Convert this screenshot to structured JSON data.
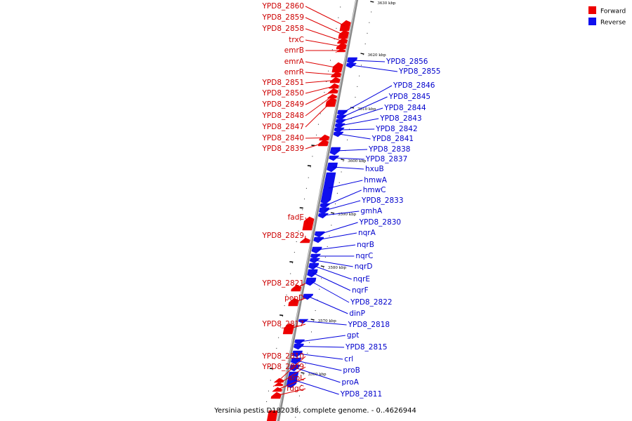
{
  "legend": {
    "forward_label": "Forward",
    "reverse_label": "Reverse",
    "forward_color": "#ee0000",
    "reverse_color": "#1010ee"
  },
  "caption": "Yersinia pestis D182038, complete genome. - 0..4626944",
  "axis": {
    "ticks": [
      "3630 kbp",
      "3620 kbp",
      "3610 kbp",
      "3600 kbp",
      "3590 kbp",
      "3580 kbp",
      "3570 kbp",
      "3560 kbp"
    ]
  },
  "forward_genes": [
    {
      "name": "YPD8_2860"
    },
    {
      "name": "YPD8_2859"
    },
    {
      "name": "YPD8_2858"
    },
    {
      "name": "trxC"
    },
    {
      "name": "emrB"
    },
    {
      "name": "emrA"
    },
    {
      "name": "emrR"
    },
    {
      "name": "YPD8_2851"
    },
    {
      "name": "YPD8_2850"
    },
    {
      "name": "YPD8_2849"
    },
    {
      "name": "YPD8_2848"
    },
    {
      "name": "YPD8_2847"
    },
    {
      "name": "YPD8_2840"
    },
    {
      "name": "YPD8_2839"
    },
    {
      "name": "fadE"
    },
    {
      "name": "YPD8_2829"
    },
    {
      "name": "YPD8_2821"
    },
    {
      "name": "pepD"
    },
    {
      "name": "YPD8_2817"
    },
    {
      "name": "YPD8_2810"
    },
    {
      "name": "YPD8_2809"
    },
    {
      "name": "aroL"
    },
    {
      "name": "rdgC"
    }
  ],
  "reverse_genes": [
    {
      "name": "YPD8_2856"
    },
    {
      "name": "YPD8_2855"
    },
    {
      "name": "YPD8_2846"
    },
    {
      "name": "YPD8_2845"
    },
    {
      "name": "YPD8_2844"
    },
    {
      "name": "YPD8_2843"
    },
    {
      "name": "YPD8_2842"
    },
    {
      "name": "YPD8_2841"
    },
    {
      "name": "YPD8_2838"
    },
    {
      "name": "YPD8_2837"
    },
    {
      "name": "hxuB"
    },
    {
      "name": "hmwA"
    },
    {
      "name": "hmwC"
    },
    {
      "name": "YPD8_2833"
    },
    {
      "name": "gmhA"
    },
    {
      "name": "YPD8_2830"
    },
    {
      "name": "nqrA"
    },
    {
      "name": "nqrB"
    },
    {
      "name": "nqrC"
    },
    {
      "name": "nqrD"
    },
    {
      "name": "nqrE"
    },
    {
      "name": "nqrF"
    },
    {
      "name": "YPD8_2822"
    },
    {
      "name": "dinP"
    },
    {
      "name": "YPD8_2818"
    },
    {
      "name": "gpt"
    },
    {
      "name": "YPD8_2815"
    },
    {
      "name": "crl"
    },
    {
      "name": "proB"
    },
    {
      "name": "proA"
    },
    {
      "name": "YPD8_2811"
    }
  ]
}
